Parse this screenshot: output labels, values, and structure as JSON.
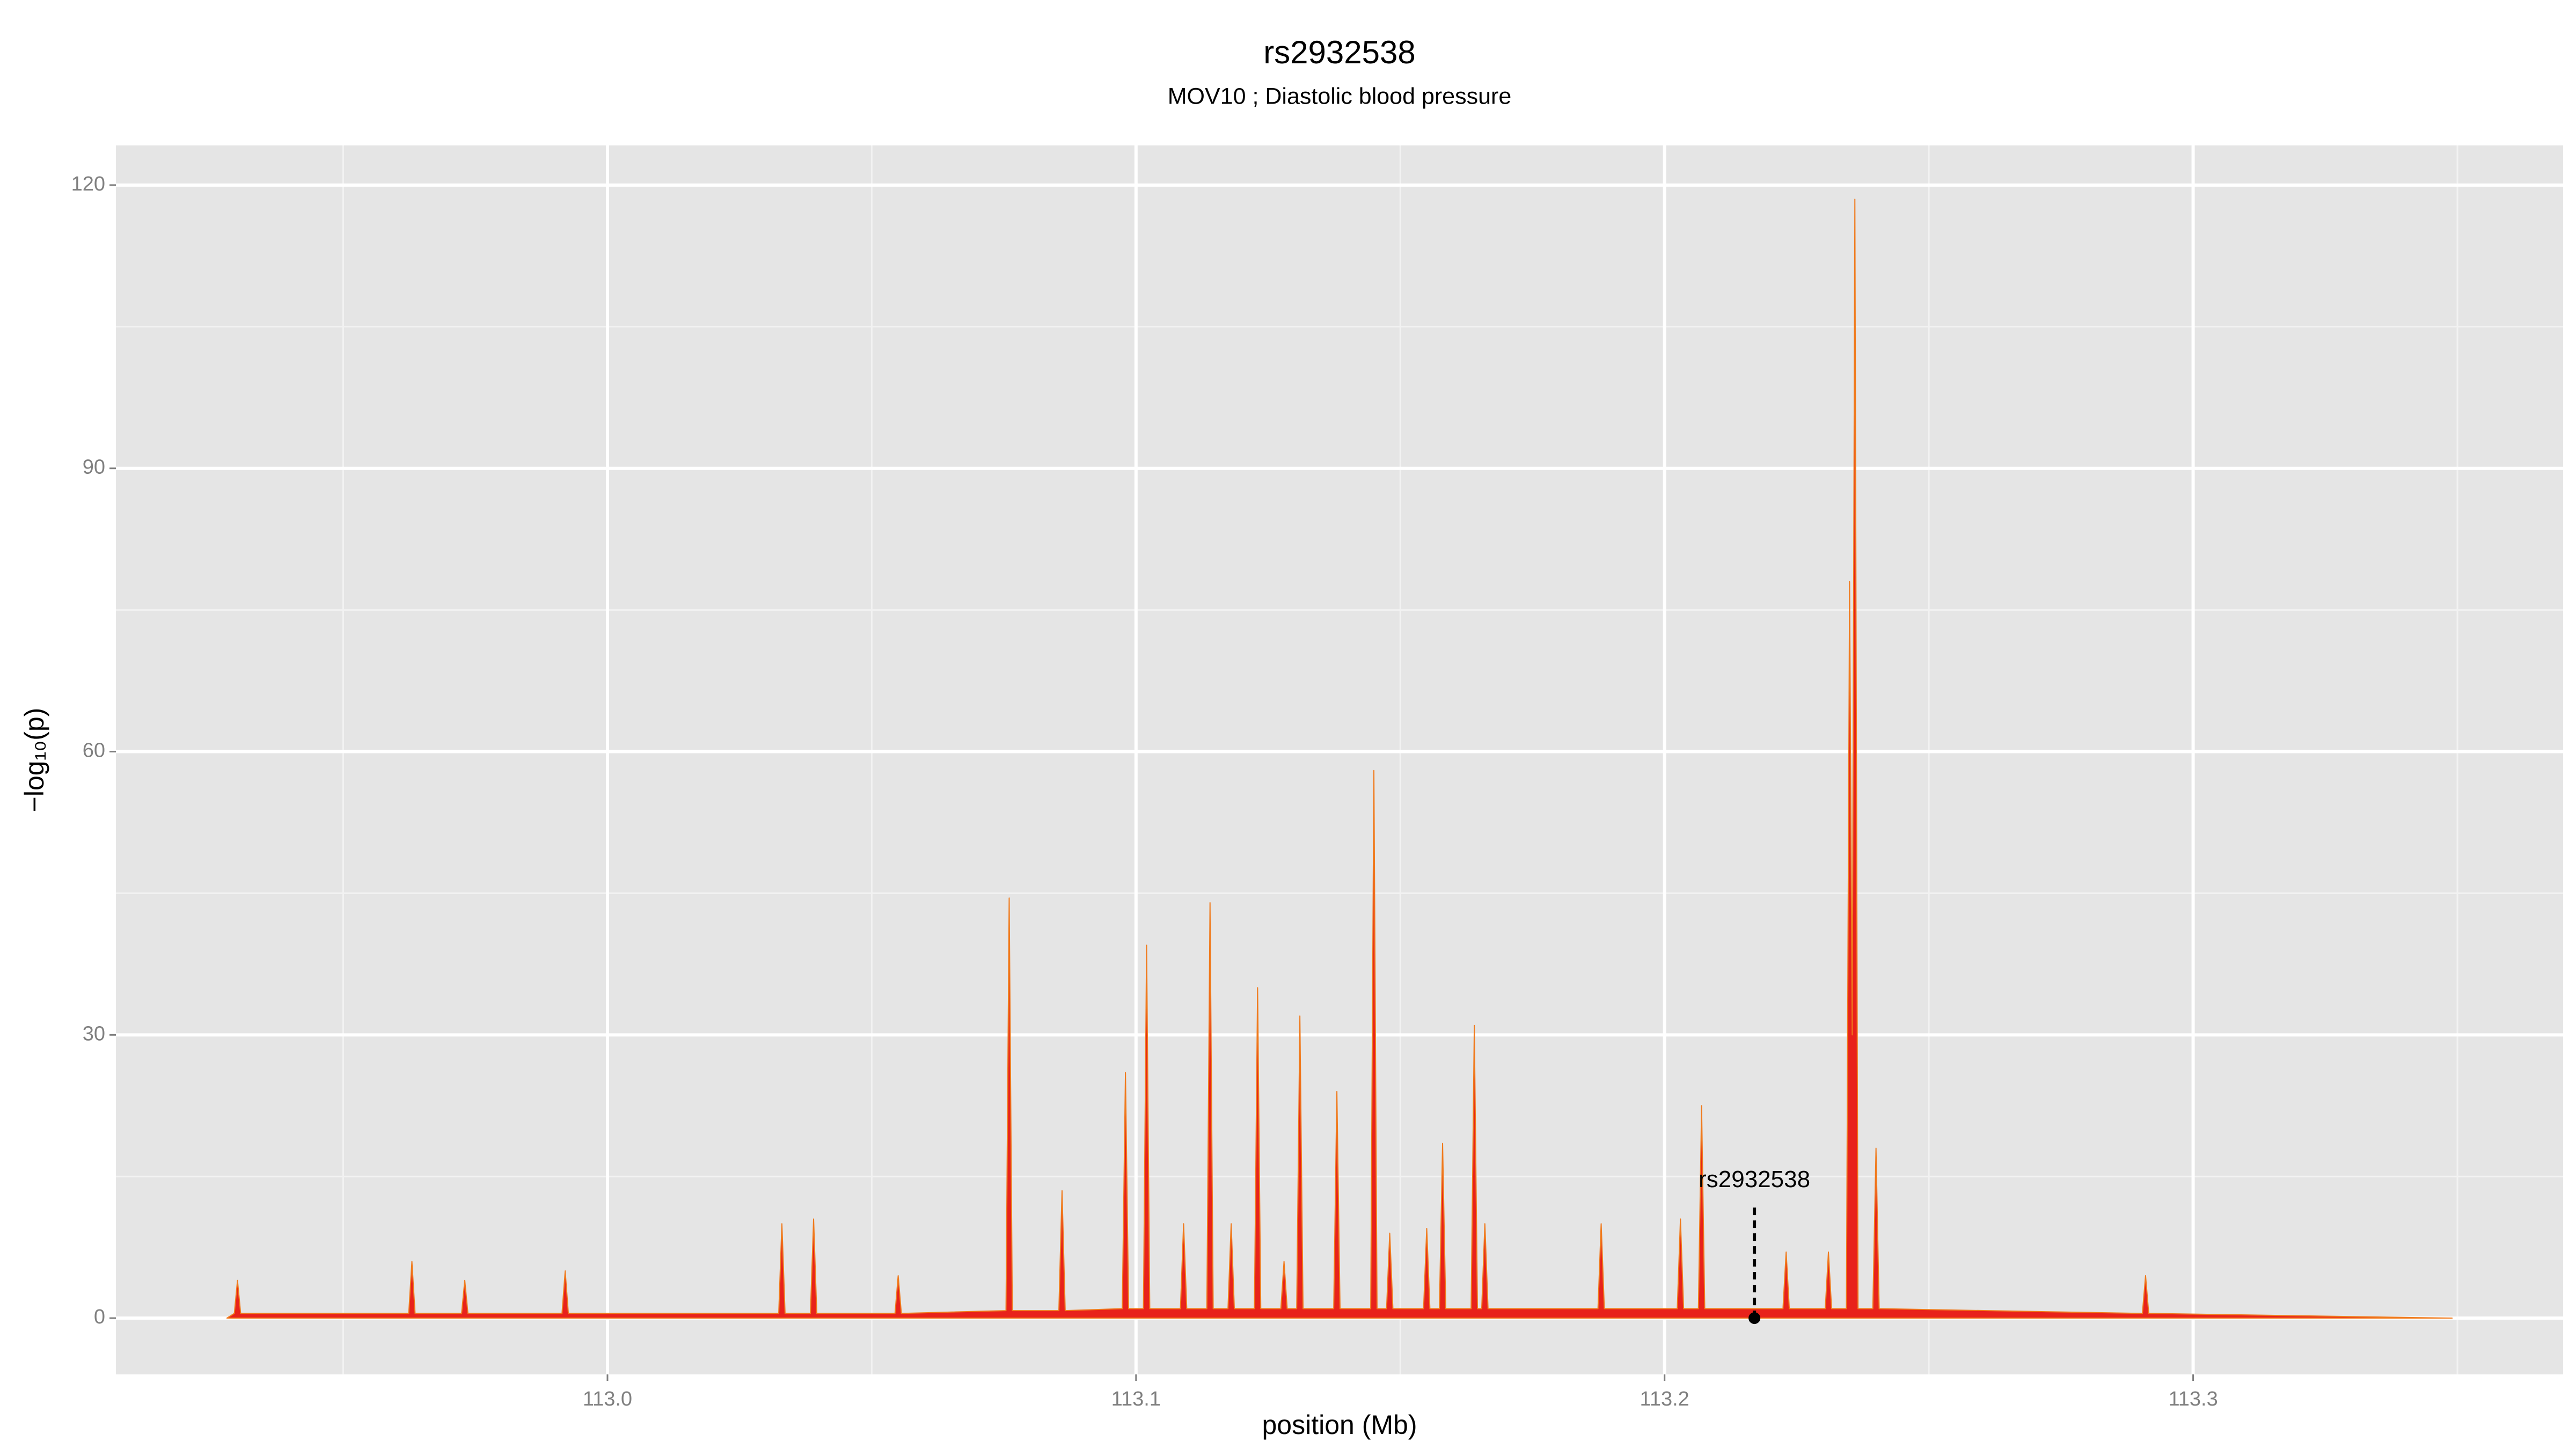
{
  "chart_data": {
    "type": "area",
    "title": "rs2932538",
    "subtitle": "MOV10 ; Diastolic blood pressure",
    "x_label": "position (Mb)",
    "y_label": "−log₁₀(p)",
    "color": "#e8221b",
    "grid": true,
    "xlim": [
      112.907,
      113.37
    ],
    "ylim": [
      -5.96,
      124.2
    ],
    "xticks": [
      {
        "value": 113.0,
        "label": "113.0"
      },
      {
        "value": 113.1,
        "label": "113.1"
      },
      {
        "value": 113.2,
        "label": "113.2"
      },
      {
        "value": 113.3,
        "label": "113.3"
      }
    ],
    "yticks": [
      0,
      30,
      60,
      90,
      120
    ],
    "annotation": {
      "text": "rs2932538",
      "x": 113.217,
      "y": 0
    },
    "x": [
      112.928,
      112.9294,
      112.93,
      112.9306,
      112.9624,
      112.963,
      112.9636,
      112.9724,
      112.973,
      112.9736,
      112.9914,
      112.992,
      112.9926,
      113.0324,
      113.033,
      113.0336,
      113.0384,
      113.039,
      113.0396,
      113.0544,
      113.055,
      113.0556,
      113.0754,
      113.076,
      113.0766,
      113.0854,
      113.086,
      113.0866,
      113.0974,
      113.098,
      113.0986,
      113.1014,
      113.102,
      113.1026,
      113.1084,
      113.109,
      113.1096,
      113.1134,
      113.114,
      113.1146,
      113.1174,
      113.118,
      113.1186,
      113.1224,
      113.123,
      113.1236,
      113.1274,
      113.128,
      113.1286,
      113.1304,
      113.131,
      113.1316,
      113.1374,
      113.138,
      113.1386,
      113.1444,
      113.145,
      113.1456,
      113.1474,
      113.148,
      113.1486,
      113.1544,
      113.155,
      113.1556,
      113.1574,
      113.158,
      113.1586,
      113.1634,
      113.164,
      113.1646,
      113.1654,
      113.166,
      113.1666,
      113.1874,
      113.188,
      113.1886,
      113.2024,
      113.203,
      113.2036,
      113.2064,
      113.207,
      113.2076,
      113.2224,
      113.223,
      113.2236,
      113.2304,
      113.231,
      113.2316,
      113.2344,
      113.235,
      113.2355,
      113.236,
      113.2366,
      113.2394,
      113.24,
      113.2406,
      113.2904,
      113.291,
      113.2916,
      113.349
    ],
    "y": [
      0,
      0.5,
      4,
      0.5,
      0.5,
      6,
      0.5,
      0.5,
      4,
      0.5,
      0.5,
      5,
      0.5,
      0.5,
      10,
      0.5,
      0.5,
      10.5,
      0.5,
      0.5,
      4.5,
      0.5,
      0.8,
      44.5,
      0.8,
      0.8,
      13.5,
      0.8,
      1,
      26,
      1,
      1,
      39.5,
      1,
      1,
      10,
      1,
      1,
      44,
      1,
      1,
      10,
      1,
      1,
      35,
      1,
      1,
      6,
      1,
      1,
      32,
      1,
      1,
      24,
      1,
      1,
      58,
      1,
      1,
      9,
      1,
      1,
      9.5,
      1,
      1,
      18.5,
      1,
      1,
      31,
      1,
      1,
      10,
      1,
      1,
      10,
      1,
      1,
      10.5,
      1,
      1,
      22.5,
      1,
      1,
      7,
      1,
      1,
      7,
      1,
      1,
      78,
      30,
      118.5,
      1,
      1,
      18,
      1,
      0.5,
      4.5,
      0.5,
      0
    ]
  }
}
